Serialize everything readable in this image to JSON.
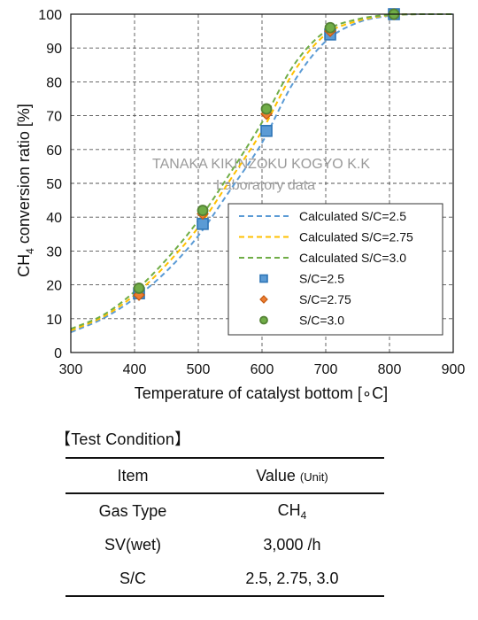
{
  "chart_data": {
    "type": "line",
    "xlabel": "Temperature of catalyst bottom [∘C]",
    "ylabel_main": "CH",
    "ylabel_sub": "4",
    "ylabel_rest": " conversion ratio [%]",
    "xlim": [
      300,
      900
    ],
    "ylim": [
      0,
      100
    ],
    "xticks": [
      300,
      400,
      500,
      600,
      700,
      800,
      900
    ],
    "yticks": [
      0,
      10,
      20,
      30,
      40,
      50,
      60,
      70,
      80,
      90,
      100
    ],
    "grid": true,
    "grid_style": "dashed",
    "legend_position": "bottom-right",
    "watermark_line1": "TANAKA KIKINZOKU KOGYO K.K",
    "watermark_line2": "Laboratory data",
    "series": [
      {
        "name": "Calculated S/C=2.5",
        "kind": "line",
        "color": "#5b9bd5",
        "x": [
          300,
          350,
          400,
          450,
          500,
          550,
          600,
          650,
          700,
          750,
          800,
          850,
          900
        ],
        "y": [
          6,
          10,
          16,
          24,
          34.5,
          48,
          62,
          80,
          92,
          97.5,
          99.5,
          100,
          100
        ]
      },
      {
        "name": "Calculated S/C=2.75",
        "kind": "line",
        "color": "#ffc000",
        "x": [
          300,
          350,
          400,
          450,
          500,
          550,
          600,
          650,
          700,
          750,
          800,
          850,
          900
        ],
        "y": [
          6.5,
          10.5,
          17,
          26,
          37,
          51,
          65.5,
          83,
          94,
          98,
          99.7,
          100,
          100
        ]
      },
      {
        "name": "Calculated S/C=3.0",
        "kind": "line",
        "color": "#70ad47",
        "x": [
          300,
          350,
          400,
          450,
          500,
          550,
          600,
          650,
          700,
          750,
          800,
          850,
          900
        ],
        "y": [
          7,
          11,
          18,
          27.5,
          39,
          53,
          68,
          85,
          95,
          98.5,
          99.8,
          100,
          100
        ]
      },
      {
        "name": "S/C=2.5",
        "kind": "marker",
        "shape": "square",
        "color": "#5b9bd5",
        "edge": "#2e75b6",
        "x": [
          407,
          507,
          607,
          707,
          807
        ],
        "y": [
          17.5,
          38,
          65.5,
          94,
          100
        ]
      },
      {
        "name": "S/C=2.75",
        "kind": "marker",
        "shape": "diamond",
        "color": "#ed7d31",
        "edge": "#c55a11",
        "x": [
          407,
          507,
          607,
          707,
          807
        ],
        "y": [
          17,
          41,
          70.5,
          95,
          100
        ]
      },
      {
        "name": "S/C=3.0",
        "kind": "marker",
        "shape": "circle",
        "color": "#70ad47",
        "edge": "#548235",
        "x": [
          407,
          507,
          607,
          707,
          807
        ],
        "y": [
          19,
          42,
          72,
          96,
          100
        ]
      }
    ]
  },
  "test_condition": {
    "title": "【Test Condition】",
    "header_item": "Item",
    "header_value": "Value",
    "header_unit": "(Unit)",
    "rows": [
      {
        "item": "Gas Type",
        "value": "CH",
        "value_sub": "4"
      },
      {
        "item": "SV(wet)",
        "value": "3,000 /h"
      },
      {
        "item": "S/C",
        "value": "2.5, 2.75, 3.0"
      }
    ]
  }
}
